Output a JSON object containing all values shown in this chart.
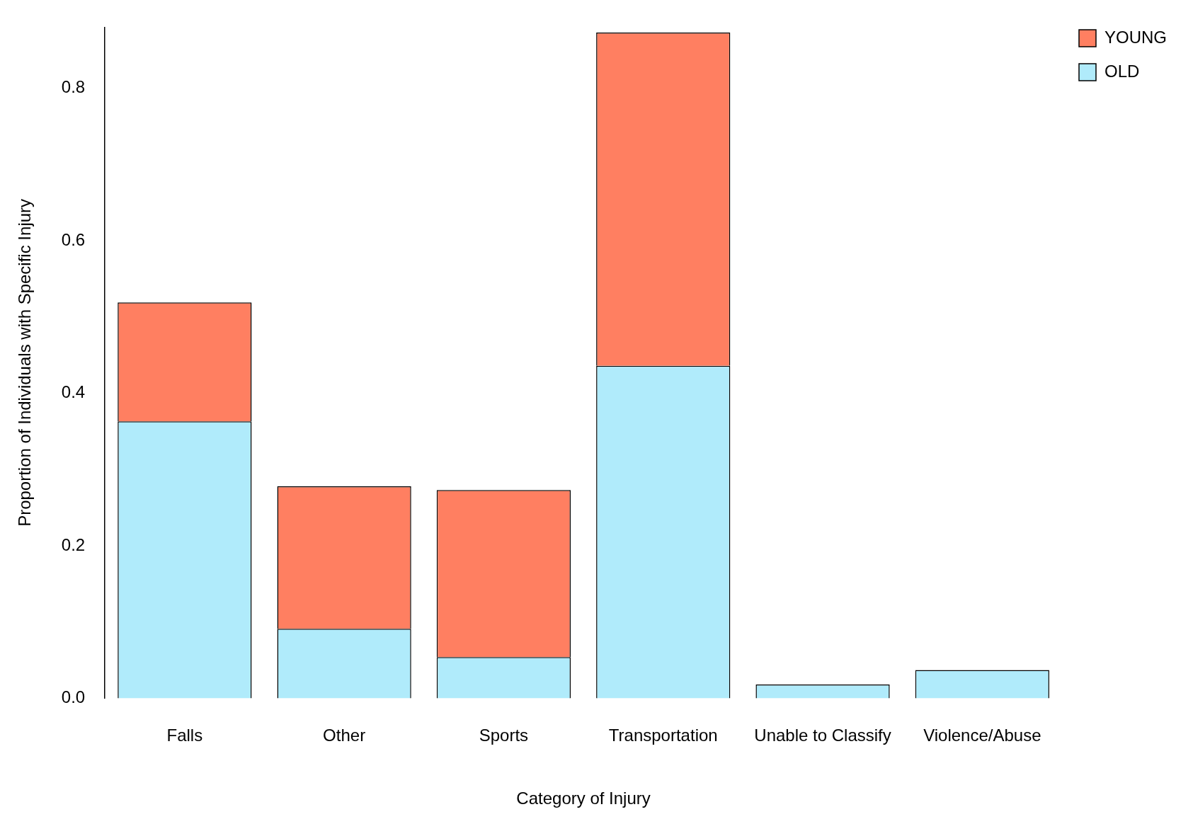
{
  "chart_data": {
    "type": "bar",
    "xlabel": "Category of Injury",
    "ylabel": "Proportion of Individuals with Specific Injury",
    "categories": [
      "Falls",
      "Other",
      "Sports",
      "Transportation",
      "Unable to Classify",
      "Violence/Abuse"
    ],
    "stacked": true,
    "series": [
      {
        "name": "OLD",
        "color": "#b0ebfb",
        "values": [
          0.363,
          0.091,
          0.054,
          0.436,
          0.018,
          0.037
        ]
      },
      {
        "name": "YOUNG",
        "color": "#ff7f61",
        "values": [
          0.156,
          0.187,
          0.219,
          0.437,
          0,
          0
        ]
      }
    ],
    "ylim": [
      0,
      0.88
    ],
    "yticks": [
      {
        "value": 0,
        "label": "0.0"
      },
      {
        "value": 0.2,
        "label": "0.2"
      },
      {
        "value": 0.4,
        "label": "0.4"
      },
      {
        "value": 0.6,
        "label": "0.6"
      },
      {
        "value": 0.8,
        "label": "0.8"
      }
    ],
    "grid": false,
    "legend": "top right"
  }
}
